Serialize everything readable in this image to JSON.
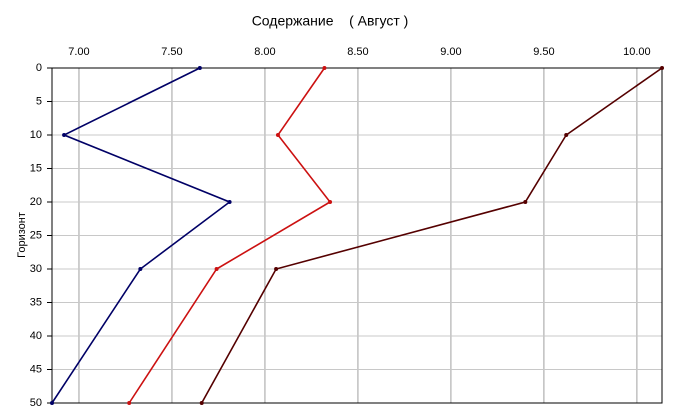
{
  "chart_data": {
    "type": "line",
    "title": "Содержание    ( Август )",
    "y_label": "Горизонт",
    "y": [
      0,
      10,
      20,
      30,
      50
    ],
    "series": [
      {
        "color": "#000066",
        "values": [
          7.65,
          6.92,
          7.81,
          7.33,
          6.855
        ]
      },
      {
        "color": "#cc1111",
        "values": [
          8.32,
          8.07,
          8.35,
          7.74,
          7.27
        ]
      },
      {
        "color": "#550000",
        "values": [
          10.135,
          9.62,
          9.4,
          8.06,
          7.66
        ]
      }
    ],
    "xlim": [
      6.855,
      10.135
    ],
    "xticks": [
      {
        "value": 7,
        "label": "7.00"
      },
      {
        "value": 7.5,
        "label": "7.50"
      },
      {
        "value": 8,
        "label": "8.00"
      },
      {
        "value": 8.5,
        "label": "8.50"
      },
      {
        "value": 9,
        "label": "9.00"
      },
      {
        "value": 9.5,
        "label": "9.50"
      },
      {
        "value": 10,
        "label": "10.00"
      }
    ],
    "ylim": [
      0,
      50
    ],
    "yticks": [
      0,
      5,
      10,
      15,
      20,
      25,
      30,
      35,
      40,
      45,
      50
    ],
    "y_inverted": true,
    "grid": true
  }
}
